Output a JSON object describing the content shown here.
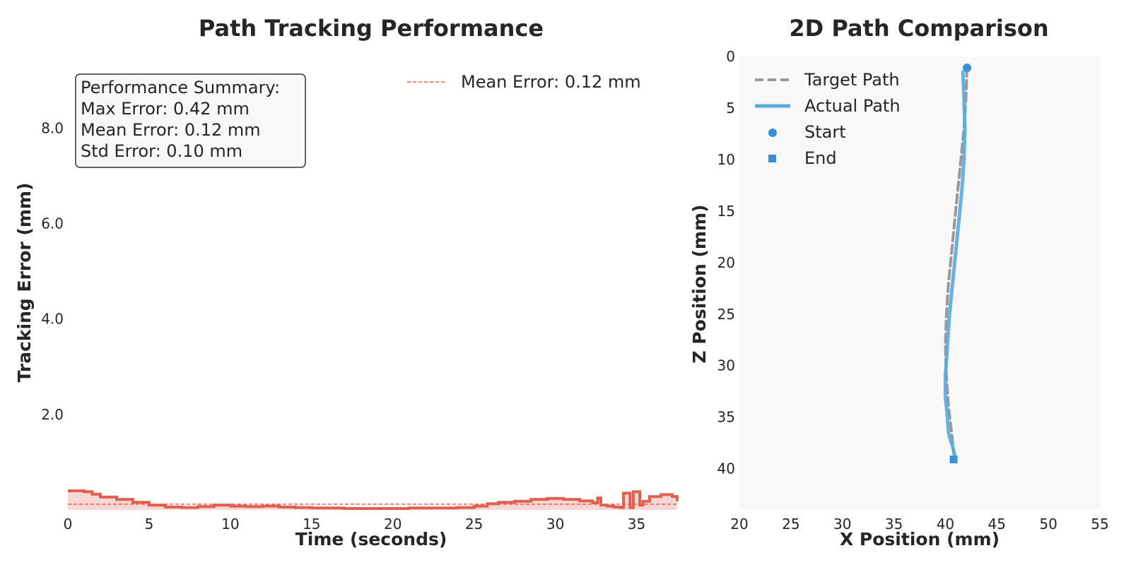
{
  "chart_data": [
    {
      "type": "area",
      "title": "Path Tracking Performance",
      "xlabel": "Time (seconds)",
      "ylabel": "Tracking Error (mm)",
      "xlim": [
        0,
        37.5
      ],
      "ylim": [
        0,
        9.5
      ],
      "xticks": [
        "0",
        "5",
        "10",
        "15",
        "20",
        "25",
        "30",
        "35"
      ],
      "yticks": [
        "2.0",
        "4.0",
        "6.0",
        "8.0"
      ],
      "grid": false,
      "legend_position": "top-right",
      "mean_error_label": "Mean Error: 0.12 mm",
      "mean_error": 0.12,
      "summary_box": {
        "line1": "Performance Summary:",
        "line2": "Max Error: 0.42 mm",
        "line3": "Mean Error: 0.12 mm",
        "line4": "Std Error: 0.10 mm"
      },
      "series": [
        {
          "color": "#e06050",
          "x": [
            0,
            1,
            1.5,
            2,
            3,
            4,
            5,
            6,
            7,
            8,
            9,
            10,
            11,
            12,
            13,
            14,
            15,
            16,
            17,
            18,
            19,
            20,
            21,
            22,
            23,
            24,
            25,
            25.8,
            26.5,
            27.5,
            28.5,
            29.5,
            30.5,
            31.5,
            32.3,
            32.6,
            32.8,
            33.2,
            33.6,
            34,
            34.2,
            34.6,
            34.8,
            35.2,
            35.4,
            35.8,
            36.5,
            37.2,
            37.5
          ],
          "y": [
            0.4,
            0.38,
            0.33,
            0.27,
            0.22,
            0.16,
            0.1,
            0.06,
            0.05,
            0.07,
            0.1,
            0.08,
            0.07,
            0.08,
            0.06,
            0.05,
            0.04,
            0.04,
            0.03,
            0.03,
            0.03,
            0.03,
            0.04,
            0.04,
            0.04,
            0.05,
            0.08,
            0.13,
            0.16,
            0.18,
            0.22,
            0.24,
            0.22,
            0.19,
            0.15,
            0.25,
            0.1,
            0.08,
            0.06,
            0.05,
            0.35,
            0.05,
            0.38,
            0.1,
            0.18,
            0.28,
            0.32,
            0.28,
            0.18
          ]
        }
      ]
    },
    {
      "type": "line",
      "title": "2D Path Comparison",
      "xlabel": "X Position (mm)",
      "ylabel": "Z Position (mm)",
      "xlim": [
        20,
        55
      ],
      "ylim": [
        0,
        44
      ],
      "y_inverted": true,
      "xticks": [
        "20",
        "25",
        "30",
        "35",
        "40",
        "45",
        "50",
        "55"
      ],
      "yticks": [
        "0",
        "5",
        "10",
        "15",
        "20",
        "25",
        "30",
        "35",
        "40"
      ],
      "grid": false,
      "legend_position": "top-left",
      "series": [
        {
          "name": "Target Path",
          "color": "#999999",
          "style": "dashed",
          "x": [
            42.1,
            42.0,
            41.8,
            41.5,
            41.2,
            40.9,
            40.6,
            40.3,
            40.1,
            40.0,
            40.1,
            40.3,
            40.6,
            40.8
          ],
          "z": [
            1.1,
            4,
            7,
            10,
            13,
            16,
            19,
            22,
            25,
            28,
            31,
            34,
            36.5,
            38.5
          ]
        },
        {
          "name": "Actual Path",
          "color": "#5aa9e0",
          "style": "solid",
          "x": [
            41.7,
            41.8,
            41.9,
            41.8,
            41.6,
            41.3,
            41.0,
            40.7,
            40.4,
            40.2,
            40.0,
            40.0,
            40.2,
            40.3,
            40.5,
            40.7,
            40.8,
            40.9,
            40.8
          ],
          "z": [
            1.5,
            4,
            7,
            10,
            13,
            16,
            19,
            22,
            25,
            28,
            31,
            33,
            35,
            36.5,
            37.2,
            37.8,
            38.3,
            38.6,
            39.1
          ]
        }
      ],
      "markers": {
        "start": {
          "name": "Start",
          "x": 42.1,
          "z": 1.1,
          "color": "#3a8fd6"
        },
        "end": {
          "name": "End",
          "x": 40.8,
          "z": 39.1,
          "color": "#3a8fd6"
        }
      }
    }
  ]
}
